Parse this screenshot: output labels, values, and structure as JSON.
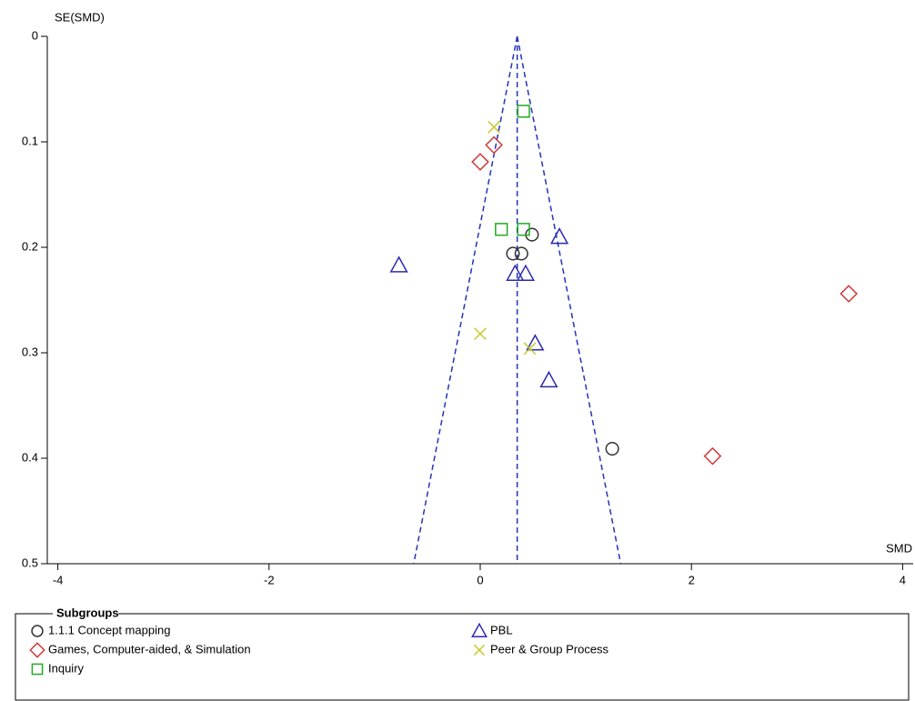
{
  "chart_data": {
    "type": "scatter",
    "y_axis_label": "SE(SMD)",
    "x_axis_label": "SMD",
    "xlim": [
      -4.1,
      4.1
    ],
    "xticks": [
      -4,
      -2,
      0,
      2,
      4
    ],
    "ylim": [
      0,
      0.5
    ],
    "yticks": [
      0,
      0.1,
      0.2,
      0.3,
      0.4,
      0.5
    ],
    "y_inverted": true,
    "summary_line": 0.35,
    "funnel_limits": [
      -0.63,
      1.33
    ],
    "funnel_color": "#2233bb",
    "legend_title": "Subgroups",
    "series": [
      {
        "name": "1.1.1 Concept mapping",
        "color": "#333333",
        "marker": "circle",
        "x": [
          0.49,
          0.31,
          0.39,
          1.25
        ],
        "y": [
          0.188,
          0.206,
          0.206,
          0.391
        ]
      },
      {
        "name": "PBL",
        "color": "#2a2ab0",
        "marker": "triangle",
        "x": [
          0.75,
          -0.77,
          0.33,
          0.43,
          0.52,
          0.65
        ],
        "y": [
          0.19,
          0.217,
          0.225,
          0.225,
          0.291,
          0.326
        ]
      },
      {
        "name": "Games, Computer-aided, & Simulation",
        "color": "#d03a3a",
        "marker": "diamond",
        "x": [
          0.13,
          0.0,
          3.49,
          2.2
        ],
        "y": [
          0.103,
          0.119,
          0.244,
          0.398
        ]
      },
      {
        "name": "Peer & Group Process",
        "color": "#c8c828",
        "marker": "x",
        "x": [
          0.13,
          0.0,
          0.47
        ],
        "y": [
          0.086,
          0.282,
          0.296
        ]
      },
      {
        "name": "Inquiry",
        "color": "#22aa22",
        "marker": "square",
        "x": [
          0.41,
          0.2,
          0.41
        ],
        "y": [
          0.071,
          0.183,
          0.183
        ]
      }
    ]
  }
}
